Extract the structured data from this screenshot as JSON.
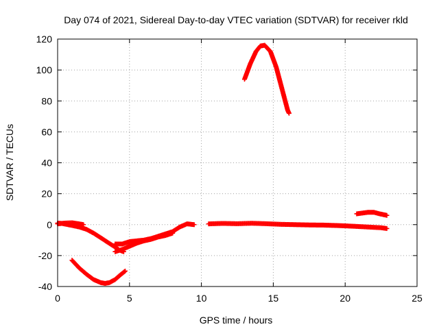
{
  "chart_data": {
    "type": "scatter",
    "title": "Day 074 of 2021, Sidereal Day-to-day VTEC variation (SDTVAR) for receiver rkld",
    "xlabel": "GPS time / hours",
    "ylabel": "SDTVAR / TECUs",
    "xlim": [
      0,
      25
    ],
    "ylim": [
      -40,
      120
    ],
    "xticks": [
      0,
      5,
      10,
      15,
      20,
      25
    ],
    "yticks": [
      -40,
      -20,
      0,
      20,
      40,
      60,
      80,
      100,
      120
    ],
    "grid": true,
    "marker": "plus",
    "color": "#ff0000",
    "series": [
      {
        "name": "track-main-low",
        "x": [
          0.0,
          0.3,
          0.6,
          1.0,
          1.5,
          2.0,
          2.5,
          3.0,
          3.5,
          4.0,
          4.3,
          4.6
        ],
        "y": [
          1.0,
          0.8,
          0.2,
          -0.5,
          -1.5,
          -3.0,
          -5.5,
          -8.5,
          -11.5,
          -14.5,
          -16.5,
          -17.5
        ]
      },
      {
        "name": "track-drift-zero",
        "x": [
          0.0,
          0.5,
          1.0,
          1.5,
          1.8
        ],
        "y": [
          0.5,
          1.0,
          1.2,
          0.5,
          0.0
        ]
      },
      {
        "name": "track-rise",
        "x": [
          4.0,
          4.5,
          5.0,
          5.5,
          6.0,
          6.5,
          7.0,
          7.5,
          8.0,
          8.5,
          9.0,
          9.5
        ],
        "y": [
          -12.5,
          -12.5,
          -11.0,
          -10.5,
          -10.0,
          -9.0,
          -7.5,
          -6.0,
          -4.5,
          -1.5,
          0.5,
          0.0
        ]
      },
      {
        "name": "track-lower-bump",
        "x": [
          4.0,
          4.5,
          5.0,
          5.5,
          6.0,
          6.5,
          7.0,
          7.5,
          8.0
        ],
        "y": [
          -17.5,
          -16.0,
          -14.0,
          -12.0,
          -10.5,
          -9.5,
          -8.0,
          -7.0,
          -5.5
        ]
      },
      {
        "name": "track-flat",
        "x": [
          10.5,
          11.5,
          12.5,
          13.5,
          14.5,
          15.5,
          16.5,
          17.5,
          18.5,
          19.5,
          20.5,
          21.5,
          22.5,
          22.9
        ],
        "y": [
          0.5,
          0.8,
          0.6,
          0.9,
          0.6,
          0.2,
          0.0,
          -0.2,
          -0.3,
          -0.6,
          -1.0,
          -1.5,
          -2.0,
          -2.5
        ]
      },
      {
        "name": "track-dip-38",
        "x": [
          1.0,
          1.5,
          2.0,
          2.5,
          3.0,
          3.3,
          3.6,
          4.0,
          4.3,
          4.7
        ],
        "y": [
          -23,
          -28,
          -32,
          -35.5,
          -37.5,
          -38,
          -37.5,
          -35.5,
          -33,
          -30
        ]
      },
      {
        "name": "track-peak-116",
        "x": [
          13.0,
          13.4,
          13.8,
          14.1,
          14.4,
          14.8,
          15.2,
          15.6,
          16.0,
          16.1
        ],
        "y": [
          94,
          104,
          112,
          115.5,
          116,
          112,
          102,
          88,
          74,
          72
        ]
      },
      {
        "name": "track-late-8",
        "x": [
          20.8,
          21.2,
          21.6,
          22.0,
          22.4,
          22.9
        ],
        "y": [
          7.0,
          7.5,
          8.0,
          8.0,
          7.0,
          6.0
        ]
      }
    ]
  }
}
